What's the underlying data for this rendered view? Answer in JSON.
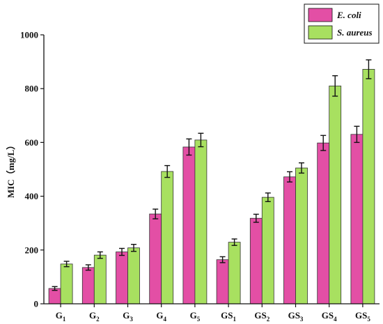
{
  "chart_data": {
    "type": "bar",
    "categories": [
      {
        "base": "G",
        "sub": "1"
      },
      {
        "base": "G",
        "sub": "2"
      },
      {
        "base": "G",
        "sub": "3"
      },
      {
        "base": "G",
        "sub": "4"
      },
      {
        "base": "G",
        "sub": "5"
      },
      {
        "base": "GS",
        "sub": "1"
      },
      {
        "base": "GS",
        "sub": "2"
      },
      {
        "base": "GS",
        "sub": "3"
      },
      {
        "base": "GS",
        "sub": "4"
      },
      {
        "base": "GS",
        "sub": "5"
      }
    ],
    "series": [
      {
        "name": "E. coli",
        "color": "#e34fa5",
        "values": [
          57,
          135,
          193,
          334,
          583,
          164,
          318,
          472,
          598,
          630
        ],
        "errors": [
          7,
          10,
          13,
          18,
          30,
          11,
          15,
          19,
          28,
          30
        ]
      },
      {
        "name": "S. aureus",
        "color": "#a8e060",
        "values": [
          148,
          181,
          208,
          492,
          609,
          229,
          396,
          505,
          810,
          872
        ],
        "errors": [
          10,
          12,
          13,
          22,
          25,
          12,
          16,
          19,
          38,
          35
        ]
      }
    ],
    "ylabel": "MIC（mg/L）",
    "ylim": [
      0,
      1000
    ],
    "yticks": [
      "0",
      "200",
      "400",
      "600",
      "800",
      "1000"
    ],
    "legend_position": "top-right",
    "grid": false
  }
}
